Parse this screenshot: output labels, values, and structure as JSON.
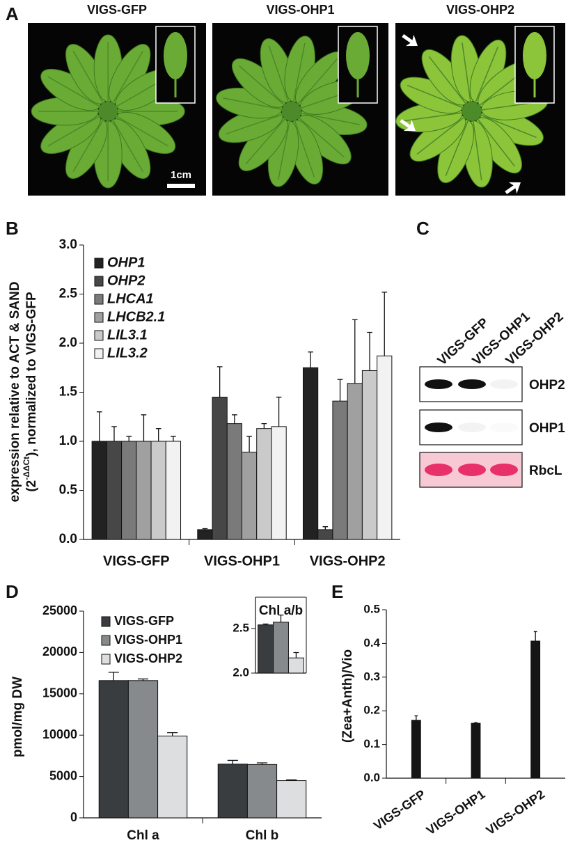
{
  "panel_labels": [
    "A",
    "B",
    "C",
    "D",
    "E"
  ],
  "photos": {
    "titles": [
      "VIGS-GFP",
      "VIGS-OHP1",
      "VIGS-OHP2"
    ],
    "scale_bar": "1cm"
  },
  "blot": {
    "lanes": [
      "VIGS-GFP",
      "VIGS-OHP1",
      "VIGS-OHP2"
    ],
    "rows": [
      "OHP2",
      "OHP1",
      "RbcL"
    ]
  },
  "chart_data": [
    {
      "type": "bar",
      "ylabel": "expression relative to ACT & SAND",
      "ylabel_2": [
        "(2",
        "-ΔΔCt",
        "), normalized to VIGS-GFP"
      ],
      "categories": [
        "VIGS-GFP",
        "VIGS-OHP1",
        "VIGS-OHP2"
      ],
      "series": [
        {
          "name": "OHP1",
          "color": "#222222",
          "values": [
            1.0,
            0.1,
            1.75
          ],
          "errors": [
            0.3,
            0.01,
            0.16
          ]
        },
        {
          "name": "OHP2",
          "color": "#474747",
          "values": [
            1.0,
            1.45,
            0.1
          ],
          "errors": [
            0.15,
            0.31,
            0.03
          ]
        },
        {
          "name": "LHCA1",
          "color": "#7a7a7a",
          "values": [
            1.0,
            1.18,
            1.41
          ],
          "errors": [
            0.05,
            0.09,
            0.22
          ]
        },
        {
          "name": "LHCB2.1",
          "color": "#a0a0a0",
          "values": [
            1.0,
            0.89,
            1.59
          ],
          "errors": [
            0.27,
            0.16,
            0.65
          ]
        },
        {
          "name": "LIL3.1",
          "color": "#cacaca",
          "values": [
            1.0,
            1.13,
            1.72
          ],
          "errors": [
            0.13,
            0.05,
            0.39
          ]
        },
        {
          "name": "LIL3.2",
          "color": "#f2f2f2",
          "values": [
            1.0,
            1.15,
            1.87
          ],
          "errors": [
            0.05,
            0.3,
            0.65
          ]
        }
      ],
      "ylim": [
        0,
        3
      ],
      "yticks": [
        {
          "value": 0,
          "label": "0.0"
        },
        0.5,
        {
          "value": 1,
          "label": "1.0"
        },
        1.5,
        {
          "value": 2,
          "label": "2.0"
        },
        2.5,
        {
          "value": 3,
          "label": "3.0"
        }
      ]
    },
    {
      "type": "bar",
      "ylabel": "pmol/mg DW",
      "categories": [
        "Chl a",
        "Chl b"
      ],
      "series": [
        {
          "name": "VIGS-GFP",
          "color": "#3a3d40",
          "values": [
            16600,
            6500
          ],
          "errors": [
            1000,
            450
          ]
        },
        {
          "name": "VIGS-OHP1",
          "color": "#878a8c",
          "values": [
            16600,
            6450
          ],
          "errors": [
            200,
            200
          ]
        },
        {
          "name": "VIGS-OHP2",
          "color": "#dcdedf",
          "values": [
            9900,
            4500
          ],
          "errors": [
            400,
            100
          ]
        }
      ],
      "ylim": [
        0,
        25000
      ],
      "yticks": [
        0,
        5000,
        10000,
        15000,
        20000,
        25000
      ]
    },
    {
      "type": "bar",
      "title": "Chl a/b",
      "values": [
        2.54,
        2.57,
        2.17
      ],
      "errors": [
        0.01,
        0.08,
        0.06
      ],
      "colors": [
        "#3a3d40",
        "#878a8c",
        "#dcdedf"
      ],
      "ylim": [
        2.0,
        2.85
      ],
      "yticks": [
        {
          "value": 2,
          "label": "2.0"
        },
        2.5
      ]
    },
    {
      "type": "bar",
      "ylabel": "(Zea+Anth)/Vio",
      "categories": [
        "VIGS-GFP",
        "VIGS-OHP1",
        "VIGS-OHP2"
      ],
      "values": [
        0.172,
        0.163,
        0.407
      ],
      "errors": [
        0.013,
        0.002,
        0.028
      ],
      "color": "#151515",
      "ylim": [
        0,
        0.5
      ],
      "yticks": [
        {
          "value": 0,
          "label": "0.0"
        },
        0.1,
        0.2,
        0.3,
        0.4,
        0.5
      ]
    }
  ]
}
